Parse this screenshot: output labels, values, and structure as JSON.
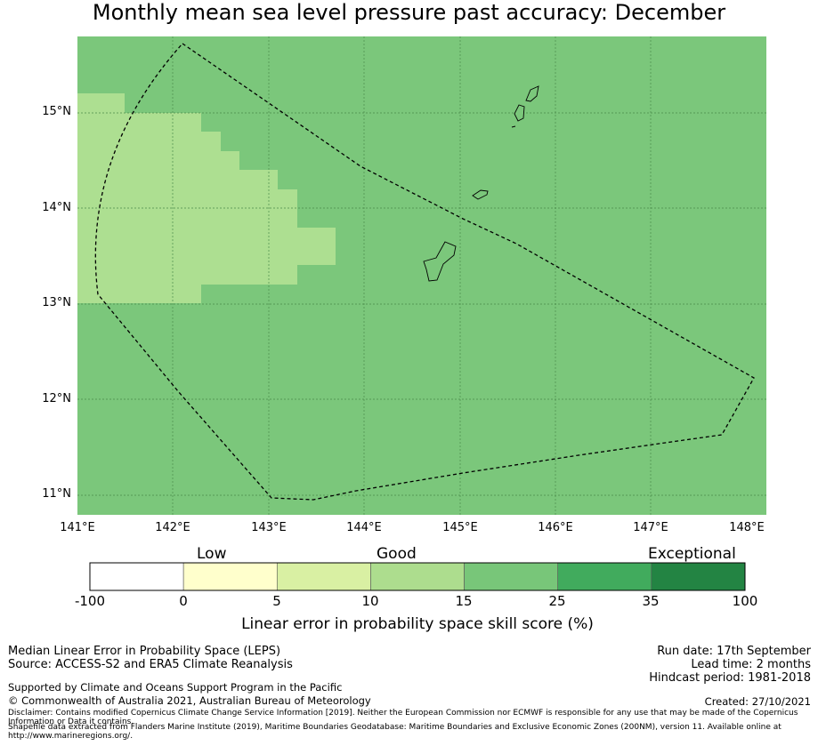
{
  "title": "Monthly mean sea level pressure past accuracy: December",
  "map": {
    "lat_labels": [
      "15°N",
      "14°N",
      "13°N",
      "12°N",
      "11°N"
    ],
    "lon_labels": [
      "141°E",
      "142°E",
      "143°E",
      "144°E",
      "145°E",
      "146°E",
      "147°E",
      "148°E"
    ],
    "colors": {
      "background_good": "#7bc77b",
      "lighter_region": "#addf91",
      "grid": "#4a8a4a",
      "boundary": "#000000"
    }
  },
  "colorbar": {
    "category_labels": [
      "Low",
      "Good",
      "Exceptional"
    ],
    "ticks": [
      "-100",
      "0",
      "5",
      "10",
      "15",
      "25",
      "35",
      "100"
    ],
    "colors": [
      "#ffffff",
      "#ffffcc",
      "#d9f0a3",
      "#addd8e",
      "#78c679",
      "#41ab5d",
      "#238443"
    ],
    "title": "Linear error in probability space skill score (%)"
  },
  "info": {
    "method": "Median Linear Error in Probability Space (LEPS)",
    "source": "Source: ACCESS-S2 and ERA5 Climate Reanalysis",
    "run_date": "Run date: 17th September",
    "lead_time": "Lead time: 2 months",
    "hindcast": "Hindcast period: 1981-2018",
    "support": "Supported by Climate and Oceans Support Program in the Pacific",
    "copyright": "© Commonwealth of Australia 2021, Australian Bureau of Meteorology",
    "created": "Created: 27/10/2021",
    "disclaimer": "Disclaimer: Contains modified Copernicus Climate Change Service Information [2019]. Neither the European Commission nor ECMWF is responsible for any use that may be made of the Copernicus Information or Data it contains.",
    "shapefile": "Shapefile data extracted from Flanders Marine Institute (2019), Maritime Boundaries Geodatabase: Maritime Boundaries and Exclusive Economic Zones (200NM), version 11. Available online at http://www.marineregions.org/."
  }
}
